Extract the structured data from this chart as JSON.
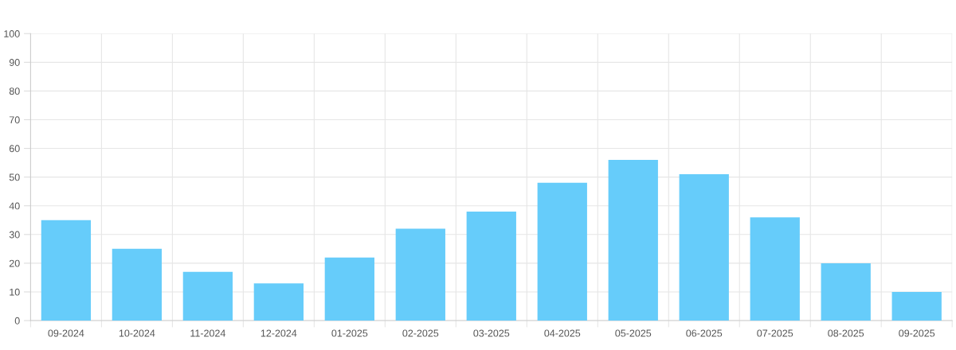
{
  "chart_data": {
    "type": "bar",
    "categories": [
      "09-2024",
      "10-2024",
      "11-2024",
      "12-2024",
      "01-2025",
      "02-2025",
      "03-2025",
      "04-2025",
      "05-2025",
      "06-2025",
      "07-2025",
      "08-2025",
      "09-2025"
    ],
    "values": [
      35,
      25,
      17,
      13,
      22,
      32,
      38,
      48,
      56,
      51,
      36,
      20,
      10
    ],
    "color": "#66ccfa",
    "ylim": [
      0,
      100
    ],
    "yticks": [
      0,
      10,
      20,
      30,
      40,
      50,
      60,
      70,
      80,
      90,
      100
    ],
    "grid": true,
    "legend": false
  }
}
